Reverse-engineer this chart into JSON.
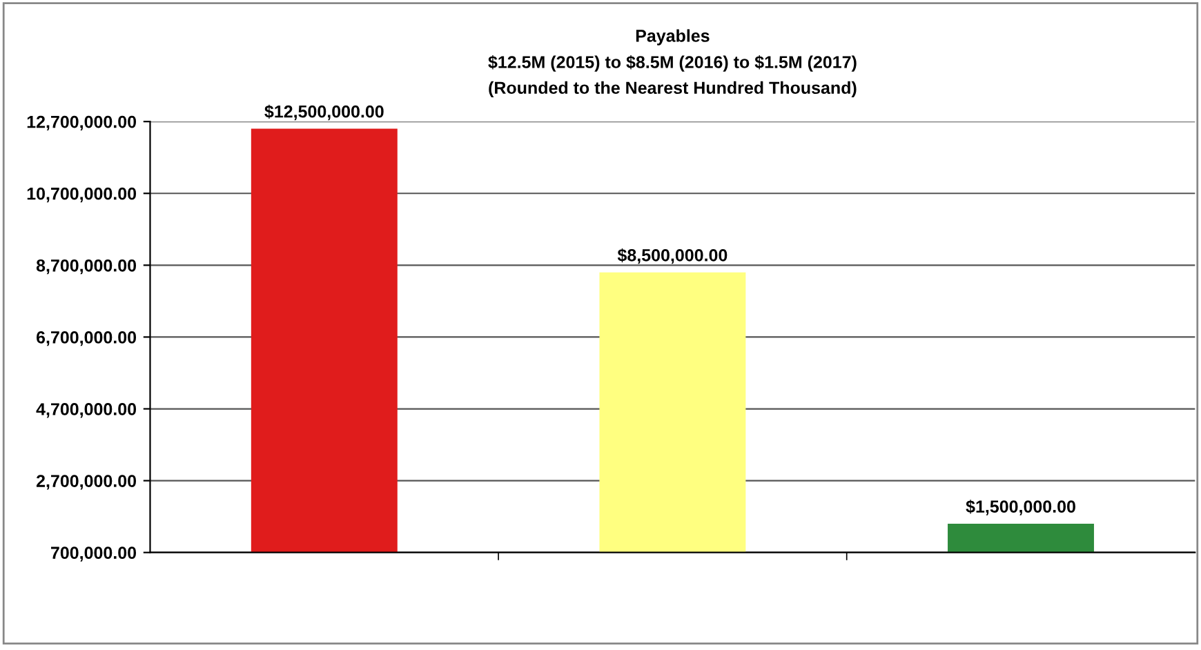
{
  "chart_data": {
    "type": "bar",
    "title": "Payables",
    "subtitle": "$12.5M (2015) to $8.5M (2016) to $1.5M (2017)",
    "annotations": [
      "(Rounded to the Nearest Hundred Thousand)"
    ],
    "categories": [
      null,
      null,
      null
    ],
    "values": [
      12500000,
      8500000,
      1500000
    ],
    "colors": [
      "#e01c1c",
      "#ffff80",
      "#2e8b3c"
    ],
    "value_labels": [
      "$12,500,000.00",
      "$8,500,000.00",
      "$1,500,000.00"
    ],
    "ylim": [
      700000,
      12700000
    ],
    "yticks": [
      {
        "value": 700000,
        "label": "700,000.00"
      },
      {
        "value": 2700000,
        "label": "2,700,000.00"
      },
      {
        "value": 4700000,
        "label": "4,700,000.00"
      },
      {
        "value": 6700000,
        "label": "6,700,000.00"
      },
      {
        "value": 8700000,
        "label": "8,700,000.00"
      },
      {
        "value": 10700000,
        "label": "10,700,000.00"
      },
      {
        "value": 12700000,
        "label": "12,700,000.00"
      }
    ],
    "grid": "y"
  }
}
